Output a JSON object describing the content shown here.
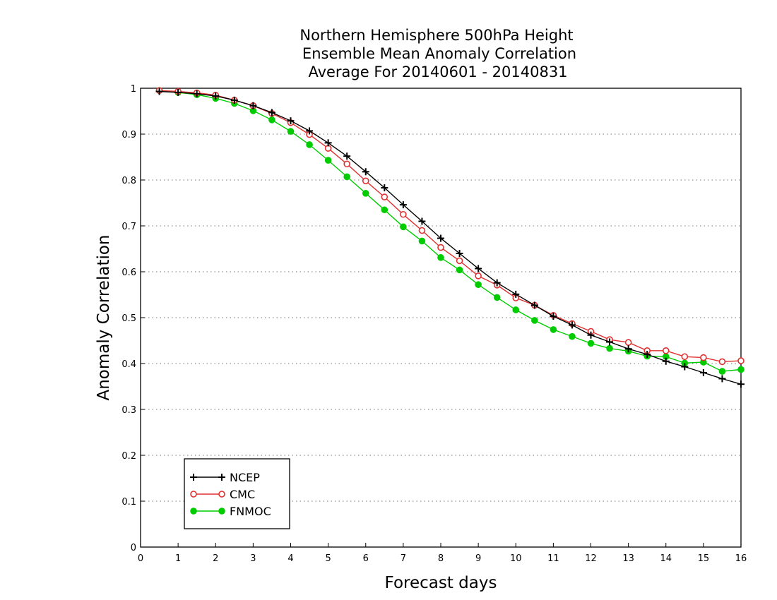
{
  "chart_data": {
    "type": "line",
    "title_lines": [
      "Northern Hemisphere 500hPa Height",
      "Ensemble Mean Anomaly Correlation",
      "Average For 20140601 - 20140831"
    ],
    "xlabel": "Forecast days",
    "ylabel": "Anomaly Correlation",
    "xlim": [
      0,
      16
    ],
    "ylim": [
      0,
      1
    ],
    "x_ticks": [
      "0",
      "1",
      "2",
      "3",
      "4",
      "5",
      "6",
      "7",
      "8",
      "9",
      "10",
      "11",
      "12",
      "13",
      "14",
      "15",
      "16"
    ],
    "y_ticks": [
      "0",
      "0.1",
      "0.2",
      "0.3",
      "0.4",
      "0.5",
      "0.6",
      "0.7",
      "0.8",
      "0.9",
      "1"
    ],
    "grid": "horizontal dotted",
    "legend_position": "bottom-left",
    "x": [
      0.5,
      1,
      1.5,
      2,
      2.5,
      3,
      3.5,
      4,
      4.5,
      5,
      5.5,
      6,
      6.5,
      7,
      7.5,
      8,
      8.5,
      9,
      9.5,
      10,
      10.5,
      11,
      11.5,
      12,
      12.5,
      13,
      13.5,
      14,
      14.5,
      15,
      15.5,
      16
    ],
    "series": [
      {
        "name": "NCEP",
        "color": "#000000",
        "marker": "plus",
        "values": [
          0.993,
          0.991,
          0.988,
          0.983,
          0.974,
          0.962,
          0.947,
          0.929,
          0.907,
          0.881,
          0.852,
          0.818,
          0.783,
          0.746,
          0.71,
          0.673,
          0.64,
          0.607,
          0.576,
          0.551,
          0.527,
          0.503,
          0.484,
          0.462,
          0.447,
          0.432,
          0.42,
          0.405,
          0.393,
          0.38,
          0.367,
          0.355
        ]
      },
      {
        "name": "CMC",
        "color": "#e03030",
        "marker": "open-circle",
        "values": [
          0.995,
          0.993,
          0.99,
          0.985,
          0.974,
          0.962,
          0.945,
          0.925,
          0.899,
          0.869,
          0.835,
          0.798,
          0.763,
          0.725,
          0.69,
          0.653,
          0.624,
          0.591,
          0.571,
          0.543,
          0.527,
          0.505,
          0.487,
          0.47,
          0.452,
          0.446,
          0.428,
          0.428,
          0.415,
          0.413,
          0.404,
          0.406
        ]
      },
      {
        "name": "FNMOC",
        "color": "#00cc00",
        "marker": "filled-circle",
        "values": [
          0.995,
          0.991,
          0.986,
          0.978,
          0.967,
          0.951,
          0.931,
          0.906,
          0.877,
          0.843,
          0.807,
          0.771,
          0.735,
          0.698,
          0.667,
          0.631,
          0.604,
          0.572,
          0.544,
          0.517,
          0.494,
          0.474,
          0.459,
          0.444,
          0.433,
          0.427,
          0.416,
          0.415,
          0.401,
          0.403,
          0.383,
          0.387
        ]
      }
    ]
  }
}
